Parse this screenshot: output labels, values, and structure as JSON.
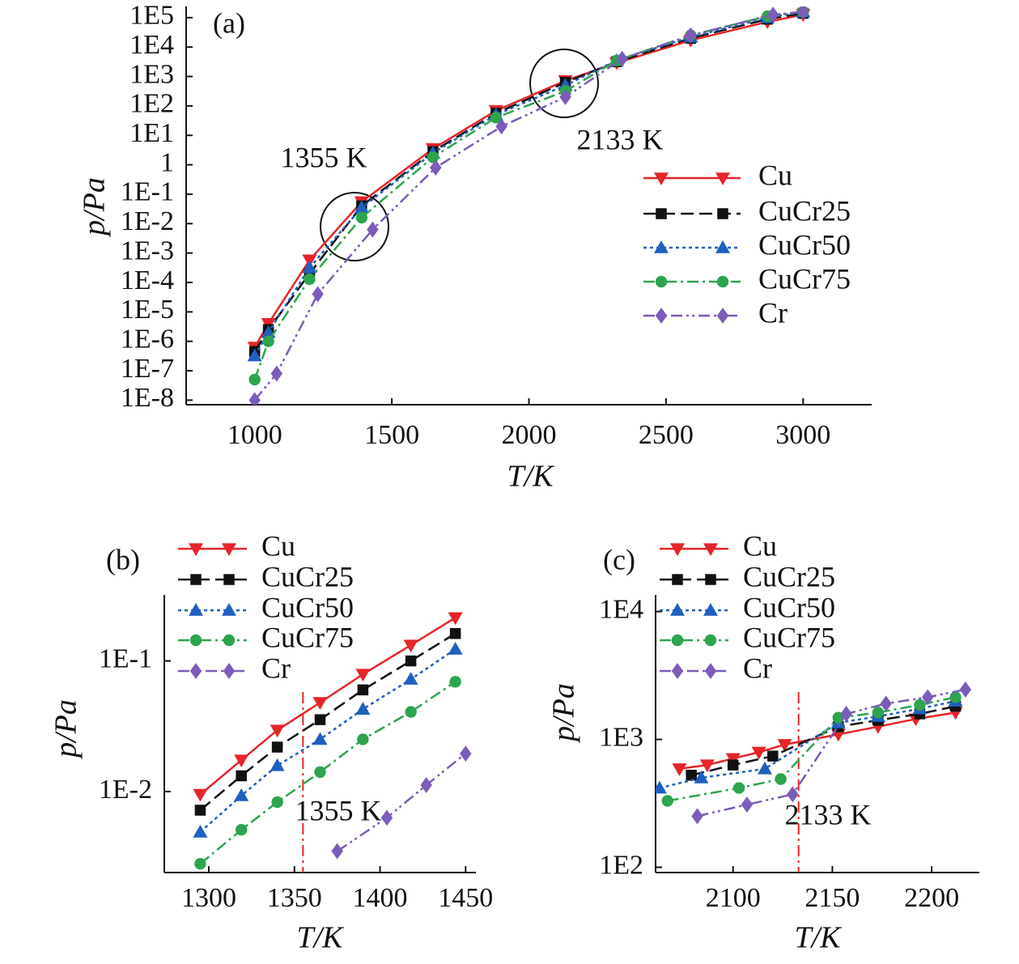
{
  "chart_data": [
    {
      "type": "line",
      "label": "(a)",
      "xlabel": "T/K",
      "ylabel": "p/Pa",
      "ylog": true,
      "xlim": [
        750,
        3250
      ],
      "xticks": [
        1000,
        1500,
        2000,
        2500,
        3000
      ],
      "ylim": [
        7e-09,
        240000
      ],
      "yticks": [
        {
          "value": 1e-08,
          "label": "1E-8"
        },
        {
          "value": 1e-07,
          "label": "1E-7"
        },
        {
          "value": 1e-06,
          "label": "1E-6"
        },
        {
          "value": 1e-05,
          "label": "1E-5"
        },
        {
          "value": 0.0001,
          "label": "1E-4"
        },
        {
          "value": 0.001,
          "label": "1E-3"
        },
        {
          "value": 0.01,
          "label": "1E-2"
        },
        {
          "value": 0.1,
          "label": "1E-1"
        },
        1,
        {
          "value": 10,
          "label": "1E1"
        },
        {
          "value": 100,
          "label": "1E2"
        },
        {
          "value": 1000,
          "label": "1E3"
        },
        {
          "value": 10000,
          "label": "1E4"
        },
        {
          "value": 100000,
          "label": "1E5"
        }
      ],
      "annotations": [
        "1355 K",
        "2133 K"
      ],
      "series": [
        {
          "name": "Cu",
          "color": "#e52528",
          "x": [
            1000,
            1050,
            1200,
            1390,
            1650,
            1880,
            2133,
            2320,
            2590,
            2870,
            3000
          ],
          "values": [
            6.3e-07,
            4e-06,
            0.00058,
            0.055,
            3.5,
            69,
            720,
            2900,
            17000,
            72000,
            126000
          ]
        },
        {
          "name": "CuCr25",
          "color": "#111111",
          "x": [
            1000,
            1050,
            1200,
            1390,
            1650,
            1880,
            2133,
            2320,
            2590,
            2870,
            3000
          ],
          "values": [
            4.5e-07,
            2.5e-06,
            0.0002,
            0.04,
            2.8,
            56,
            630,
            3200,
            20000,
            89000,
            141000
          ]
        },
        {
          "name": "CuCr50",
          "color": "#1f5fbf",
          "x": [
            1000,
            1050,
            1200,
            1390,
            1650,
            1880,
            2133,
            2320,
            2590,
            2870,
            3000
          ],
          "values": [
            3.2e-07,
            2e-06,
            0.00032,
            0.035,
            2.5,
            50,
            500,
            3500,
            22000,
            100000,
            158000
          ]
        },
        {
          "name": "CuCr75",
          "color": "#2ea44f",
          "x": [
            1000,
            1050,
            1200,
            1390,
            1650,
            1880,
            2133,
            2320,
            2590,
            2870,
            3000
          ],
          "values": [
            5e-08,
            1e-06,
            0.00013,
            0.016,
            1.8,
            40,
            320,
            3500,
            25000,
            112000,
            158000
          ]
        },
        {
          "name": "Cr",
          "color": "#7b5cb8",
          "x": [
            1000,
            1080,
            1230,
            1430,
            1660,
            1900,
            2133,
            2340,
            2590,
            2890,
            3000
          ],
          "values": [
            1e-08,
            8e-08,
            4e-05,
            0.0063,
            0.8,
            20,
            200,
            4000,
            25000,
            126000,
            158000
          ]
        }
      ]
    },
    {
      "type": "line",
      "label": "(b)",
      "xlabel": "T/K",
      "ylabel": "p/Pa",
      "ylog": true,
      "xlim": [
        1274,
        1456
      ],
      "xticks": [
        1300,
        1350,
        1400,
        1450
      ],
      "ylim": [
        0.0024,
        0.32
      ],
      "yticks": [
        {
          "value": 0.01,
          "label": "1E-2"
        },
        {
          "value": 0.1,
          "label": "1E-1"
        }
      ],
      "vline": 1355,
      "annotations": [
        "1355 K"
      ],
      "series": [
        {
          "name": "Cu",
          "color": "#e52528",
          "x": [
            1295,
            1319,
            1340,
            1365,
            1390,
            1418,
            1444
          ],
          "values": [
            0.0095,
            0.0174,
            0.0295,
            0.048,
            0.079,
            0.132,
            0.214
          ]
        },
        {
          "name": "CuCr25",
          "color": "#111111",
          "x": [
            1295,
            1319,
            1340,
            1365,
            1390,
            1418,
            1444
          ],
          "values": [
            0.0072,
            0.0132,
            0.0219,
            0.0355,
            0.06,
            0.1,
            0.162
          ]
        },
        {
          "name": "CuCr50",
          "color": "#1f5fbf",
          "x": [
            1295,
            1319,
            1340,
            1365,
            1390,
            1418,
            1444
          ],
          "values": [
            0.0049,
            0.0093,
            0.0158,
            0.0251,
            0.0427,
            0.0724,
            0.123
          ]
        },
        {
          "name": "CuCr75",
          "color": "#2ea44f",
          "x": [
            1295,
            1319,
            1340,
            1365,
            1390,
            1418,
            1444
          ],
          "values": [
            0.0028,
            0.0051,
            0.0083,
            0.0141,
            0.0251,
            0.0407,
            0.0692
          ]
        },
        {
          "name": "Cr",
          "color": "#7b5cb8",
          "x": [
            1375,
            1404,
            1427,
            1450
          ],
          "values": [
            0.0035,
            0.0063,
            0.0112,
            0.0195
          ]
        }
      ]
    },
    {
      "type": "line",
      "label": "(c)",
      "xlabel": "T/K",
      "ylabel": "p/Pa",
      "ylog": true,
      "xlim": [
        2061,
        2224
      ],
      "xticks": [
        2100,
        2150,
        2200
      ],
      "ylim": [
        91,
        13500
      ],
      "yticks": [
        {
          "value": 100,
          "label": "1E2"
        },
        {
          "value": 1000,
          "label": "1E3"
        },
        {
          "value": 10000,
          "label": "1E4"
        }
      ],
      "vline": 2133,
      "annotations": [
        "2133 K"
      ],
      "series": [
        {
          "name": "Cu",
          "color": "#e52528",
          "x": [
            2073,
            2087,
            2100,
            2113,
            2126,
            2153,
            2173,
            2192,
            2212
          ],
          "values": [
            589,
            631,
            708,
            794,
            912,
            1096,
            1259,
            1445,
            1622
          ]
        },
        {
          "name": "CuCr25",
          "color": "#111111",
          "x": [
            2079,
            2100,
            2120,
            2153,
            2173,
            2194,
            2212
          ],
          "values": [
            525,
            631,
            741,
            1259,
            1413,
            1585,
            1820
          ]
        },
        {
          "name": "CuCr50",
          "color": "#1f5fbf",
          "x": [
            2063,
            2084,
            2116,
            2153,
            2173,
            2194,
            2212
          ],
          "values": [
            417,
            501,
            589,
            1349,
            1514,
            1738,
            1995
          ]
        },
        {
          "name": "CuCr75",
          "color": "#2ea44f",
          "x": [
            2067,
            2103,
            2124,
            2153,
            2173,
            2194,
            2212
          ],
          "values": [
            331,
            417,
            490,
            1479,
            1622,
            1862,
            2138
          ]
        },
        {
          "name": "Cr",
          "color": "#7b5cb8",
          "x": [
            2082,
            2107,
            2130,
            2157,
            2177,
            2198,
            2217
          ],
          "values": [
            251,
            309,
            372,
            1585,
            1905,
            2138,
            2455
          ]
        }
      ]
    }
  ]
}
